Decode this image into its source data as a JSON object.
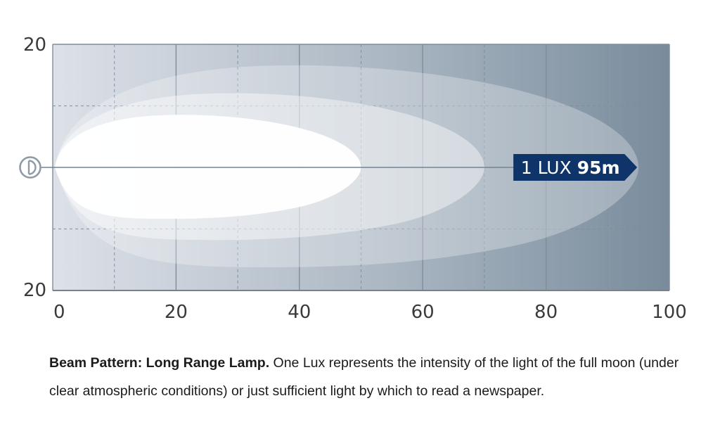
{
  "chart_data": {
    "type": "beam-pattern",
    "title": "Beam Pattern: Long Range Lamp.",
    "x_range": [
      0,
      100
    ],
    "y_range": [
      -20,
      20
    ],
    "x_ticks": [
      "0",
      "20",
      "40",
      "60",
      "80",
      "100"
    ],
    "y_tick_top": "20",
    "y_tick_bottom": "20",
    "x_major_grid": [
      0,
      20,
      40,
      60,
      80,
      100
    ],
    "x_minor_grid": [
      10,
      30,
      50,
      70,
      90
    ],
    "y_minor_grid": [
      -10,
      10
    ],
    "isolines": [
      {
        "name": "outer",
        "reach": 95,
        "half_width": 16.5
      },
      {
        "name": "middle",
        "reach": 70,
        "half_width": 12
      },
      {
        "name": "inner",
        "reach": 50,
        "half_width": 8.5
      }
    ],
    "marker": {
      "text_prefix": "1 LUX ",
      "text_value": "95m",
      "distance": 95
    },
    "colors": {
      "gradient_start": "#dde1e8",
      "gradient_end": "#798c9c",
      "grid": "#7f8d9a",
      "marker_bg": "#0f3469"
    }
  },
  "caption": {
    "bold": "Beam Pattern: Long Range Lamp.",
    "text": " One Lux represents the intensity of the light of the full moon (under clear atmospheric conditions) or just sufficient light by which to read a newspaper."
  }
}
